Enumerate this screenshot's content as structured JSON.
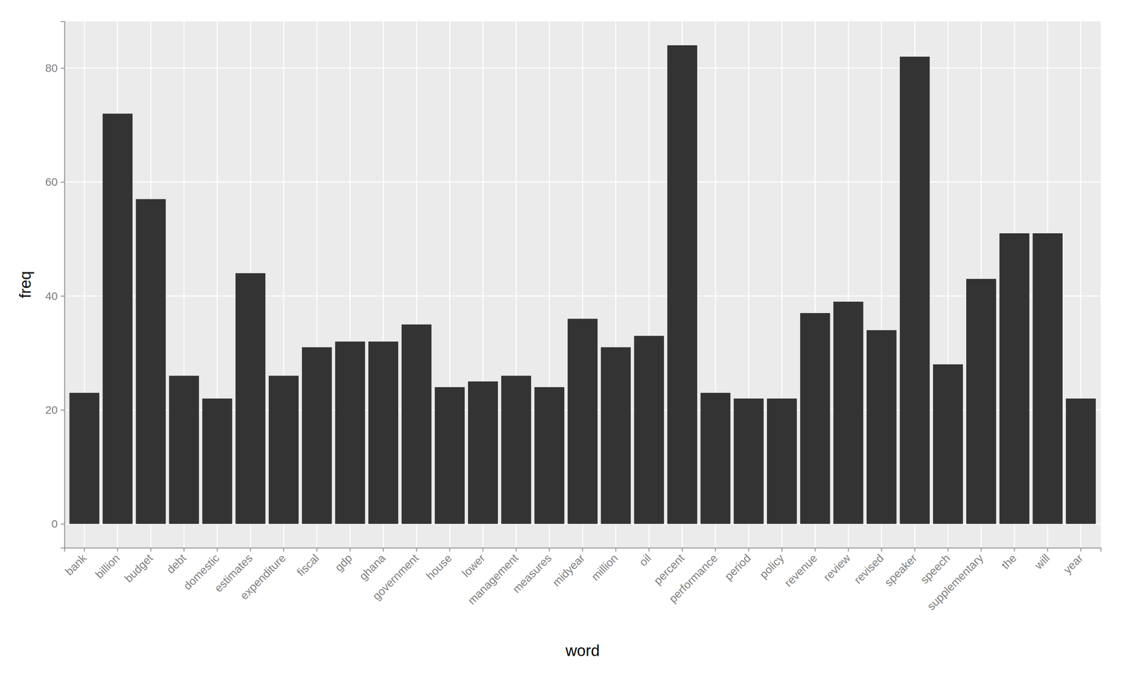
{
  "chart_data": {
    "type": "bar",
    "x_label": "word",
    "y_label": "freq",
    "categories": [
      "bank",
      "billion",
      "budget",
      "debt",
      "domestic",
      "estimates",
      "expenditure",
      "fiscal",
      "gdp",
      "ghana",
      "government",
      "house",
      "lower",
      "management",
      "measures",
      "midyear",
      "million",
      "oil",
      "percent",
      "performance",
      "period",
      "policy",
      "revenue",
      "review",
      "revised",
      "speaker",
      "speech",
      "supplementary",
      "the",
      "will",
      "year"
    ],
    "values": [
      23,
      72,
      57,
      26,
      22,
      44,
      26,
      31,
      32,
      32,
      35,
      24,
      25,
      26,
      24,
      36,
      31,
      33,
      84,
      23,
      22,
      22,
      37,
      39,
      34,
      82,
      28,
      43,
      51,
      51,
      22
    ],
    "color": "#333333",
    "ylim": [
      -4.2,
      88.2
    ],
    "yticks": [
      0,
      20,
      40,
      60,
      80
    ],
    "grid": true
  }
}
